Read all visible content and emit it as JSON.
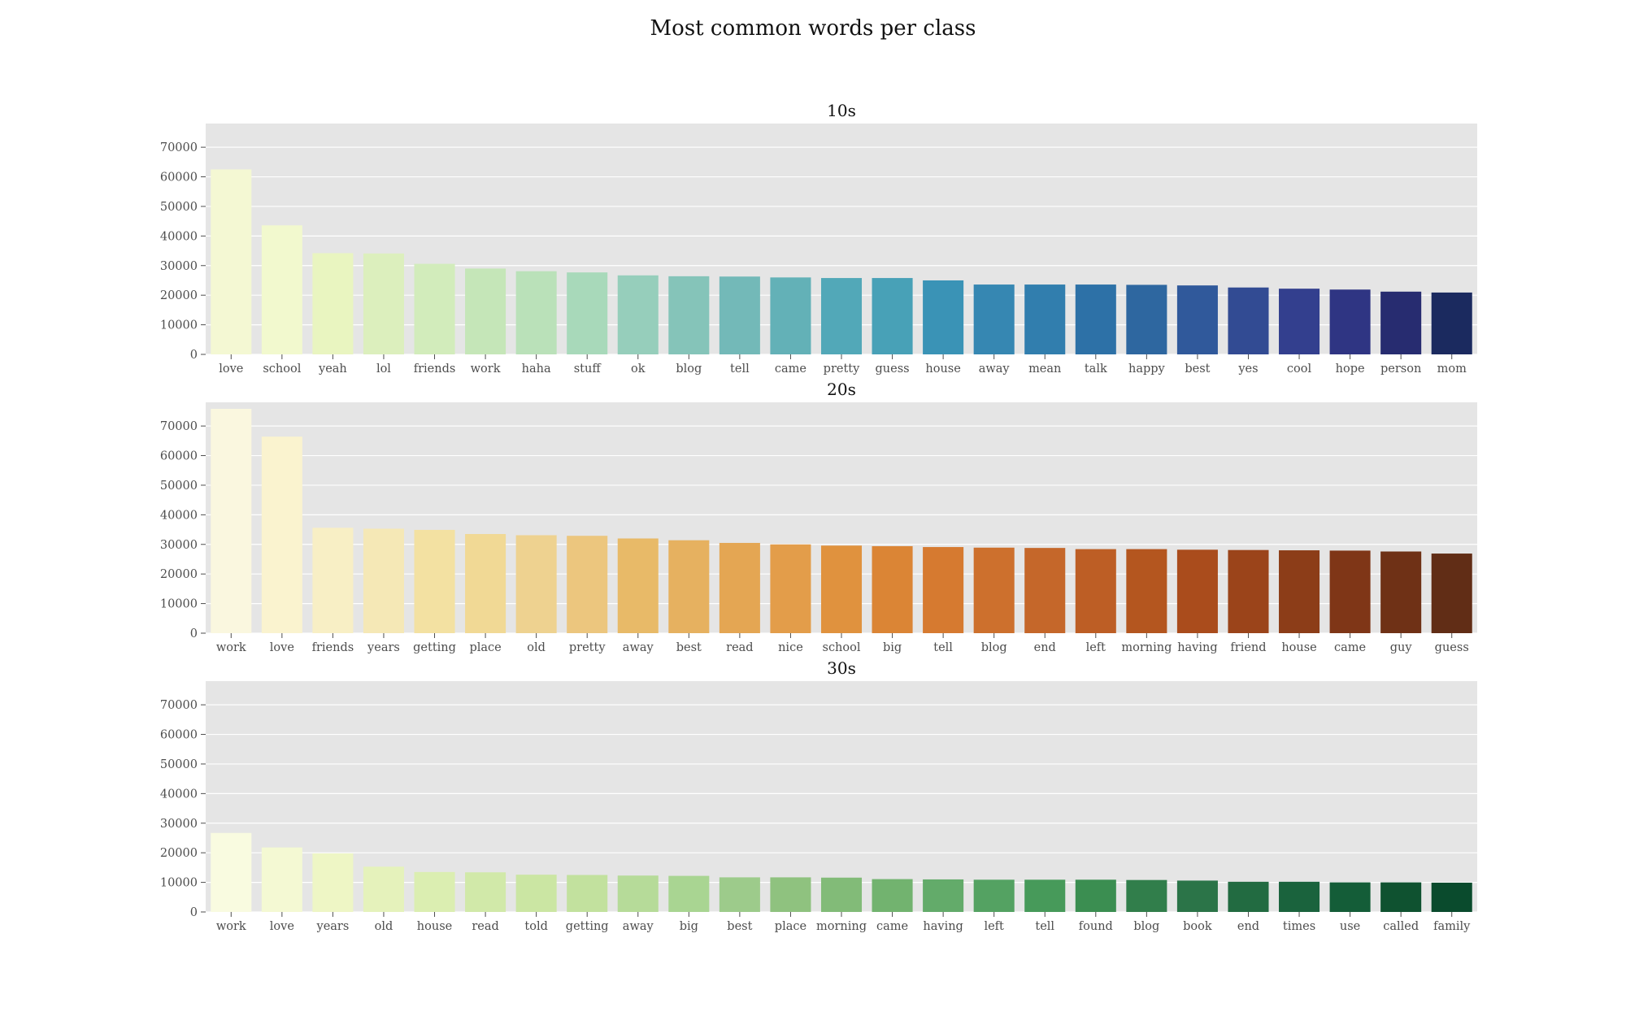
{
  "title": "Most common words per class",
  "colors": {
    "background": "#e5e5e5",
    "grid": "#ffffff",
    "text": "#4d4d4d"
  },
  "chart_data": [
    {
      "type": "bar",
      "title": "10s",
      "palette": "YlGnBu",
      "ylim": [
        0,
        78000
      ],
      "yticks": [
        0,
        10000,
        20000,
        30000,
        40000,
        50000,
        60000,
        70000
      ],
      "grid": true,
      "categories": [
        "love",
        "school",
        "yeah",
        "lol",
        "friends",
        "work",
        "haha",
        "stuff",
        "ok",
        "blog",
        "tell",
        "came",
        "pretty",
        "guess",
        "house",
        "away",
        "mean",
        "talk",
        "happy",
        "best",
        "yes",
        "cool",
        "hope",
        "person",
        "mom"
      ],
      "values": [
        62500,
        43600,
        34200,
        34100,
        30600,
        29000,
        28100,
        27700,
        26700,
        26400,
        26300,
        26000,
        25800,
        25800,
        25000,
        23600,
        23600,
        23600,
        23500,
        23300,
        22600,
        22200,
        21900,
        21200,
        20900
      ],
      "colors": [
        "#f4f8d3",
        "#f2f9ce",
        "#e9f5c0",
        "#dcefbd",
        "#d2ecbb",
        "#c5e6b8",
        "#bae1b9",
        "#a8d9ba",
        "#96cebb",
        "#85c4b9",
        "#73b9b8",
        "#63b1b7",
        "#52a8b8",
        "#48a1b7",
        "#3a93b6",
        "#3687b2",
        "#317eae",
        "#2d71a7",
        "#2e67a0",
        "#30599b",
        "#324b93",
        "#333f8e",
        "#2f3583",
        "#272c70",
        "#1b2a5f"
      ]
    },
    {
      "type": "bar",
      "title": "20s",
      "palette": "YlOrBr",
      "ylim": [
        0,
        78000
      ],
      "yticks": [
        0,
        10000,
        20000,
        30000,
        40000,
        50000,
        60000,
        70000
      ],
      "grid": true,
      "categories": [
        "work",
        "love",
        "friends",
        "years",
        "getting",
        "place",
        "old",
        "pretty",
        "away",
        "best",
        "read",
        "nice",
        "school",
        "big",
        "tell",
        "blog",
        "end",
        "left",
        "morning",
        "having",
        "friend",
        "house",
        "came",
        "guy",
        "guess"
      ],
      "values": [
        75800,
        66400,
        35600,
        35300,
        34900,
        33500,
        33100,
        32900,
        32000,
        31400,
        30500,
        30000,
        29600,
        29400,
        29100,
        28900,
        28800,
        28400,
        28400,
        28200,
        28100,
        28000,
        27900,
        27600,
        26900
      ],
      "colors": [
        "#faf7df",
        "#faf3cf",
        "#f8efc5",
        "#f5e8b6",
        "#f3e1a2",
        "#f1d995",
        "#eed290",
        "#ecc67e",
        "#e8ba68",
        "#e6b160",
        "#e4a653",
        "#e39d4a",
        "#e0923e",
        "#db8535",
        "#d67a30",
        "#cd702d",
        "#c5672a",
        "#bd5e25",
        "#b4561f",
        "#aa4c1c",
        "#9b441a",
        "#8c3d18",
        "#7f3617",
        "#6f3116",
        "#612d16"
      ]
    },
    {
      "type": "bar",
      "title": "30s",
      "palette": "YlGn",
      "ylim": [
        0,
        78000
      ],
      "yticks": [
        0,
        10000,
        20000,
        30000,
        40000,
        50000,
        60000,
        70000
      ],
      "grid": true,
      "categories": [
        "work",
        "love",
        "years",
        "old",
        "house",
        "read",
        "told",
        "getting",
        "away",
        "big",
        "best",
        "place",
        "morning",
        "came",
        "having",
        "left",
        "tell",
        "found",
        "blog",
        "book",
        "end",
        "times",
        "use",
        "called",
        "family"
      ],
      "values": [
        26700,
        21800,
        19800,
        15300,
        13500,
        13400,
        12600,
        12500,
        12300,
        12200,
        11700,
        11700,
        11600,
        11100,
        11000,
        10900,
        10900,
        10900,
        10800,
        10600,
        10200,
        10200,
        10000,
        10000,
        9900
      ],
      "colors": [
        "#f9fbe0",
        "#f4f9d3",
        "#eef6c5",
        "#e5f2bb",
        "#dbeeb1",
        "#d1e9a9",
        "#cbe6a3",
        "#c2e19e",
        "#b6db99",
        "#a9d592",
        "#9dcb8b",
        "#8fc27f",
        "#82bb78",
        "#72b36f",
        "#63ab6a",
        "#54a262",
        "#479a5a",
        "#3b8e51",
        "#317e4b",
        "#2b7448",
        "#226b41",
        "#1a633d",
        "#145d38",
        "#0f5230",
        "#0a4b2d"
      ]
    }
  ]
}
